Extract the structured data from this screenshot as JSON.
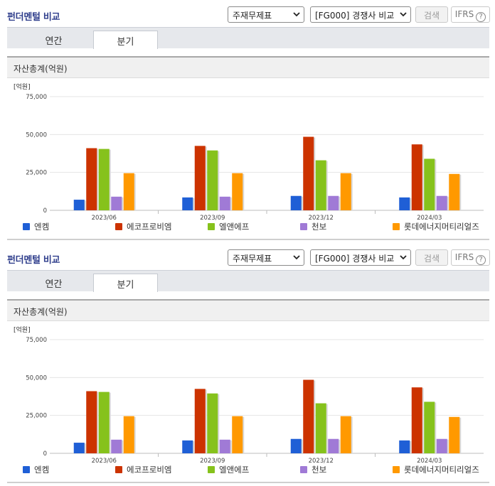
{
  "panels": [
    {
      "title": "펀더멘털 비교",
      "statement_select": "주재무제표",
      "peer_select": "[FG000] 경쟁사 비교",
      "search_label": "검색",
      "ifrs_label": "IFRS",
      "help_glyph": "?",
      "tabs": [
        "연간",
        "분기"
      ],
      "active_tab": "분기",
      "section_title": "자산총계(억원)"
    },
    {
      "title": "펀더멘털 비교",
      "statement_select": "주재무제표",
      "peer_select": "[FG000] 경쟁사 비교",
      "search_label": "검색",
      "ifrs_label": "IFRS",
      "help_glyph": "?",
      "tabs": [
        "연간",
        "분기"
      ],
      "active_tab": "분기",
      "section_title": "자산총계(억원)"
    }
  ],
  "chart_data": [
    {
      "type": "bar",
      "unit_label": "[억원]",
      "categories": [
        "2023/06",
        "2023/09",
        "2023/12",
        "2024/03"
      ],
      "ylim": [
        0,
        75000
      ],
      "yticks": [
        "0",
        "25,000",
        "50,000",
        "75,000"
      ],
      "ytick_values": [
        0,
        25000,
        50000,
        75000
      ],
      "grid": true,
      "legend_position": "bottom",
      "series": [
        {
          "name": "엔켐",
          "color": "#1f5fd6",
          "values": [
            7000,
            8500,
            9500,
            8500
          ]
        },
        {
          "name": "에코프로비엠",
          "color": "#cc3300",
          "values": [
            41000,
            42500,
            48500,
            43500
          ]
        },
        {
          "name": "엘앤에프",
          "color": "#86c21c",
          "values": [
            40500,
            39500,
            33000,
            34000
          ]
        },
        {
          "name": "천보",
          "color": "#a07ad6",
          "values": [
            9000,
            9000,
            9500,
            9500
          ]
        },
        {
          "name": "롯데에너지머티리얼즈",
          "color": "#ff9900",
          "values": [
            24500,
            24500,
            24500,
            24000
          ]
        }
      ]
    },
    {
      "type": "bar",
      "unit_label": "[억원]",
      "categories": [
        "2023/06",
        "2023/09",
        "2023/12",
        "2024/03"
      ],
      "ylim": [
        0,
        75000
      ],
      "yticks": [
        "0",
        "25,000",
        "50,000",
        "75,000"
      ],
      "ytick_values": [
        0,
        25000,
        50000,
        75000
      ],
      "grid": true,
      "legend_position": "bottom",
      "series": [
        {
          "name": "엔켐",
          "color": "#1f5fd6",
          "values": [
            7000,
            8500,
            9500,
            8500
          ]
        },
        {
          "name": "에코프로비엠",
          "color": "#cc3300",
          "values": [
            41000,
            42500,
            48500,
            43500
          ]
        },
        {
          "name": "엘앤에프",
          "color": "#86c21c",
          "values": [
            40500,
            39500,
            33000,
            34000
          ]
        },
        {
          "name": "천보",
          "color": "#a07ad6",
          "values": [
            9000,
            9000,
            9500,
            9500
          ]
        },
        {
          "name": "롯데에너지머티리얼즈",
          "color": "#ff9900",
          "values": [
            24500,
            24500,
            24500,
            24000
          ]
        }
      ]
    }
  ]
}
